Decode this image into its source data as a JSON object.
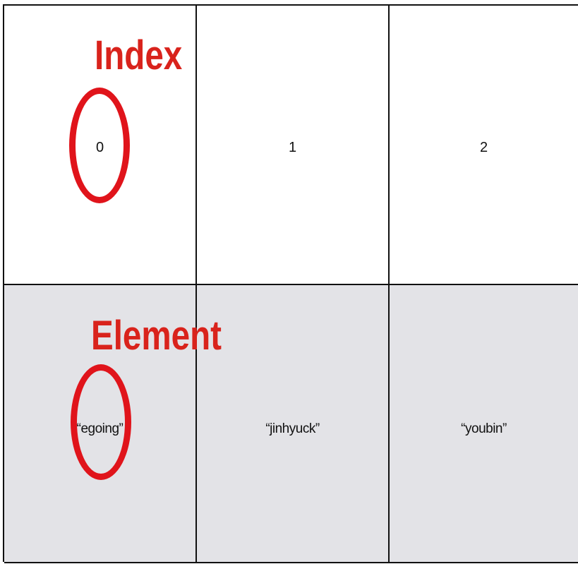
{
  "annotations": {
    "index_label": "Index",
    "element_label": "Element"
  },
  "table": {
    "index_row": [
      "0",
      "1",
      "2"
    ],
    "element_row": [
      "“egoing”",
      "“jinhyuck”",
      "“youbin”"
    ]
  },
  "colors": {
    "annotation_red": "#d9231c",
    "element_row_bg": "#e3e3e7",
    "index_row_bg": "#ffffff",
    "grid_lines": "#111111"
  }
}
